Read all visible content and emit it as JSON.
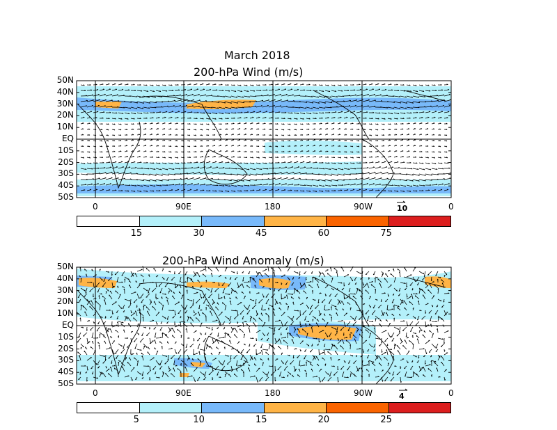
{
  "title_main": "March 2018",
  "panel1": {
    "title": "200-hPa Wind (m/s)",
    "lat_labels": [
      "50N",
      "40N",
      "30N",
      "20N",
      "10N",
      "EQ",
      "10S",
      "20S",
      "30S",
      "40S",
      "50S"
    ],
    "lon_labels": [
      "0",
      "90E",
      "180",
      "90W",
      "0"
    ],
    "ref_vector": "10",
    "colorbar": {
      "colors": [
        "#ffffff",
        "#b4f0fa",
        "#78b9fa",
        "#ffb446",
        "#fa6400",
        "#dc1e1e"
      ],
      "tick_labels": [
        "15",
        "30",
        "45",
        "60",
        "75"
      ]
    }
  },
  "panel2": {
    "title": "200-hPa Wind Anomaly (m/s)",
    "lat_labels": [
      "50N",
      "40N",
      "30N",
      "20N",
      "10N",
      "EQ",
      "10S",
      "20S",
      "30S",
      "40S",
      "50S"
    ],
    "lon_labels": [
      "0",
      "90E",
      "180",
      "90W",
      "0"
    ],
    "ref_vector": "4",
    "colorbar": {
      "colors": [
        "#ffffff",
        "#b4f0fa",
        "#78b9fa",
        "#ffb446",
        "#fa6400",
        "#dc1e1e"
      ],
      "tick_labels": [
        "5",
        "10",
        "15",
        "20",
        "25"
      ]
    }
  }
}
